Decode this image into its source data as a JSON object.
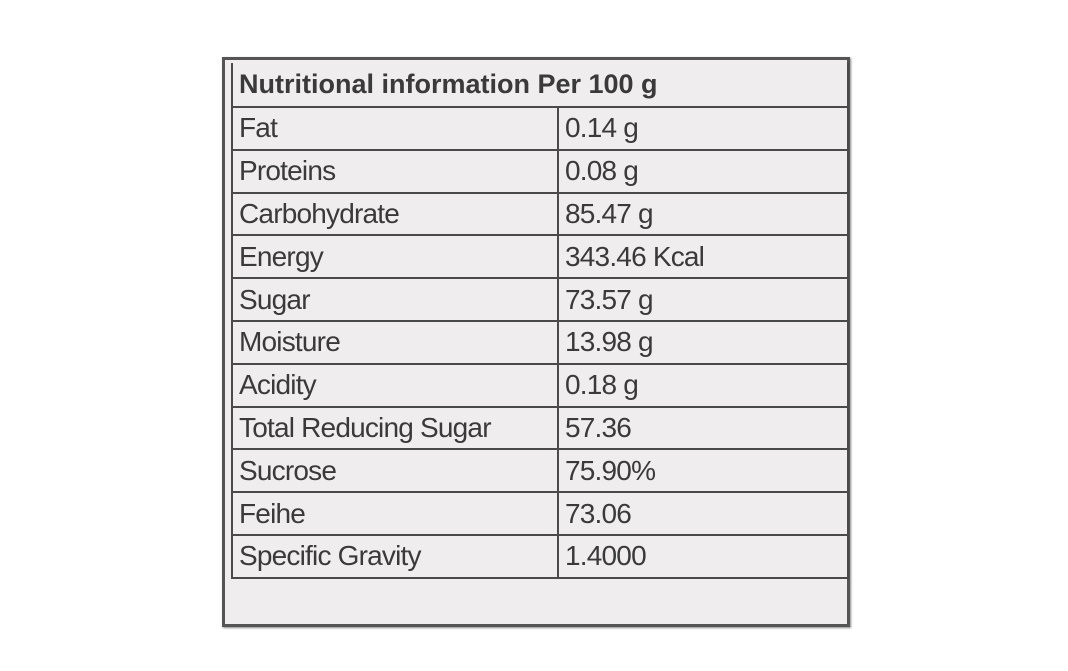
{
  "header": {
    "title": "Nutritional information Per 100 g"
  },
  "table": {
    "rows": [
      [
        "Fat",
        "0.14 g"
      ],
      [
        "Proteins",
        "0.08 g"
      ],
      [
        "Carbohydrate",
        "85.47 g"
      ],
      [
        "Energy",
        "343.46 Kcal"
      ],
      [
        "Sugar",
        "73.57 g"
      ],
      [
        "Moisture",
        "13.98 g"
      ],
      [
        "Acidity",
        "0.18 g"
      ],
      [
        "Total Reducing Sugar",
        "57.36"
      ],
      [
        "Sucrose",
        "75.90%"
      ],
      [
        "Feihe",
        "73.06"
      ],
      [
        "Specific Gravity",
        "1.4000"
      ]
    ]
  }
}
